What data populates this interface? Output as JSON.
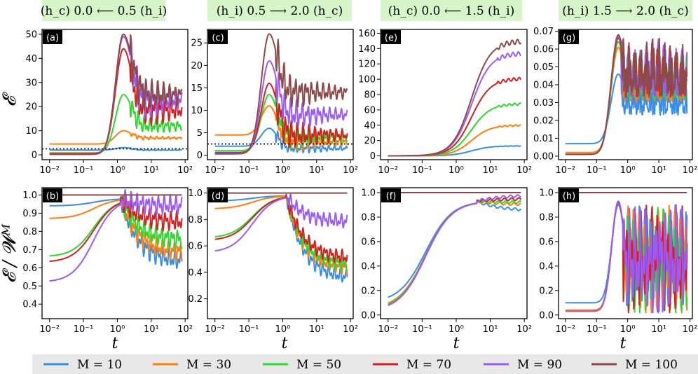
{
  "colors": {
    "M10": "#3a8ee6",
    "M30": "#ff7f0e",
    "M50": "#2ed82e",
    "M70": "#d62020",
    "M90": "#9b5cf5",
    "M100": "#8c4a4a"
  },
  "headers": [
    {
      "text": "(h_c) 0.0  ⟵  0.5 (h_i)"
    },
    {
      "text": "(h_i) 0.5  ⟶  2.0 (h_c)"
    },
    {
      "text": "(h_c) 0.0  ⟵  1.5 (h_i)"
    },
    {
      "text": "(h_i) 1.5  ⟶  2.0 (h_c)"
    }
  ],
  "axis_labels": {
    "top_y": "𝓔",
    "bottom_y": "𝓔 / 𝓦ᴹ",
    "x": "t"
  },
  "chart_data": [
    {
      "panel": "a",
      "type": "line",
      "xscale": "log",
      "xlim": [
        0.006,
        120
      ],
      "ylim": [
        -2,
        52
      ],
      "xticks": [
        "10⁻²",
        "10⁻¹",
        "10⁰",
        "10¹",
        "10²"
      ],
      "yticks": [
        0,
        10,
        20,
        30,
        40,
        50
      ],
      "hline": 2.5,
      "series": [
        {
          "name": "M = 10",
          "color_key": "M10",
          "final": 2,
          "peak": 3,
          "start": 2
        },
        {
          "name": "M = 30",
          "color_key": "M30",
          "final": 7,
          "peak": 10,
          "start": 4.5
        },
        {
          "name": "M = 50",
          "color_key": "M50",
          "final": 12,
          "peak": 25,
          "start": 0.8
        },
        {
          "name": "M = 70",
          "color_key": "M70",
          "final": 18.5,
          "peak": 44,
          "start": 0.5
        },
        {
          "name": "M = 90",
          "color_key": "M90",
          "final": 22.5,
          "peak": 49,
          "start": 0.3
        },
        {
          "name": "M = 100",
          "color_key": "M100",
          "final": 25,
          "peak": 50,
          "start": 0.2
        }
      ]
    },
    {
      "panel": "c",
      "type": "line",
      "xscale": "log",
      "xlim": [
        0.006,
        120
      ],
      "ylim": [
        -1,
        28
      ],
      "xticks": [
        "10⁻²",
        "10⁻¹",
        "10⁰",
        "10¹",
        "10²"
      ],
      "yticks": [
        0,
        5,
        10,
        15,
        20,
        25
      ],
      "hline": 2.5,
      "series": [
        {
          "name": "M = 10",
          "color_key": "M10",
          "final": 1.5,
          "peak": 6,
          "start": 2
        },
        {
          "name": "M = 30",
          "color_key": "M30",
          "final": 3,
          "peak": 11,
          "start": 4.5
        },
        {
          "name": "M = 50",
          "color_key": "M50",
          "final": 4,
          "peak": 13.5,
          "start": 1
        },
        {
          "name": "M = 70",
          "color_key": "M70",
          "final": 4.5,
          "peak": 16,
          "start": 0.6
        },
        {
          "name": "M = 90",
          "color_key": "M90",
          "final": 9,
          "peak": 21,
          "start": 0.4
        },
        {
          "name": "M = 100",
          "color_key": "M100",
          "final": 14,
          "peak": 27,
          "start": 0.3
        }
      ]
    },
    {
      "panel": "e",
      "type": "line",
      "xscale": "log",
      "xlim": [
        0.006,
        120
      ],
      "ylim": [
        -5,
        165
      ],
      "xticks": [
        "10⁻²",
        "10⁻¹",
        "10⁰",
        "10¹",
        "10²"
      ],
      "yticks": [
        0,
        20,
        40,
        60,
        80,
        100,
        120,
        140,
        160
      ],
      "series": [
        {
          "name": "M = 10",
          "color_key": "M10",
          "final": 13
        },
        {
          "name": "M = 30",
          "color_key": "M30",
          "final": 40
        },
        {
          "name": "M = 50",
          "color_key": "M50",
          "final": 68
        },
        {
          "name": "M = 70",
          "color_key": "M70",
          "final": 101
        },
        {
          "name": "M = 90",
          "color_key": "M90",
          "final": 134
        },
        {
          "name": "M = 100",
          "color_key": "M100",
          "final": 150
        }
      ]
    },
    {
      "panel": "g",
      "type": "line",
      "xscale": "log",
      "xlim": [
        0.006,
        120
      ],
      "ylim": [
        -0.002,
        0.071
      ],
      "xticks": [
        "10⁻²",
        "10⁻¹",
        "10⁰",
        "10¹",
        "10²"
      ],
      "yticks": [
        "0.00",
        "0.01",
        "0.02",
        "0.03",
        "0.04",
        "0.05",
        "0.06",
        "0.07"
      ],
      "series": [
        {
          "name": "M = 10",
          "color_key": "M10",
          "peak": 0.046,
          "start": 0.007
        },
        {
          "name": "M = 30",
          "color_key": "M30",
          "peak": 0.061,
          "start": 0.002
        },
        {
          "name": "M = 50",
          "color_key": "M50",
          "peak": 0.064,
          "start": 0.001
        },
        {
          "name": "M = 70",
          "color_key": "M70",
          "peak": 0.066,
          "start": 0.001
        },
        {
          "name": "M = 90",
          "color_key": "M90",
          "peak": 0.067,
          "start": 0.001
        },
        {
          "name": "M = 100",
          "color_key": "M100",
          "peak": 0.068,
          "start": 0.001
        }
      ]
    },
    {
      "panel": "b",
      "type": "line",
      "xscale": "log",
      "xlim": [
        0.006,
        120
      ],
      "ylim": [
        0.32,
        1.04
      ],
      "xticks": [
        "10⁻²",
        "10⁻¹",
        "10⁰",
        "10¹",
        "10²"
      ],
      "yticks": [
        "0.4",
        "0.5",
        "0.6",
        "0.7",
        "0.8",
        "0.9",
        "1.0"
      ],
      "series": [
        {
          "name": "M = 10",
          "color_key": "M10",
          "start": 0.94,
          "final": 0.63
        },
        {
          "name": "M = 30",
          "color_key": "M30",
          "start": 0.87,
          "final": 0.68
        },
        {
          "name": "M = 50",
          "color_key": "M50",
          "start": 0.66,
          "final": 0.75
        },
        {
          "name": "M = 70",
          "color_key": "M70",
          "start": 0.63,
          "final": 0.85
        },
        {
          "name": "M = 90",
          "color_key": "M90",
          "start": 0.52,
          "final": 0.94
        },
        {
          "name": "M = 100",
          "color_key": "M100",
          "start": 1.0,
          "final": 1.0
        }
      ]
    },
    {
      "panel": "d",
      "type": "line",
      "xscale": "log",
      "xlim": [
        0.006,
        120
      ],
      "ylim": [
        0.05,
        1.04
      ],
      "xticks": [
        "10⁻²",
        "10⁻¹",
        "10⁰",
        "10¹",
        "10²"
      ],
      "yticks": [
        "0.2",
        "0.4",
        "0.6",
        "0.8",
        "1.0"
      ],
      "series": [
        {
          "name": "M = 10",
          "color_key": "M10",
          "start": 0.94,
          "final": 0.35
        },
        {
          "name": "M = 30",
          "color_key": "M30",
          "start": 0.88,
          "final": 0.42
        },
        {
          "name": "M = 50",
          "color_key": "M50",
          "start": 0.66,
          "final": 0.45
        },
        {
          "name": "M = 70",
          "color_key": "M70",
          "start": 0.64,
          "final": 0.5
        },
        {
          "name": "M = 90",
          "color_key": "M90",
          "start": 0.55,
          "final": 0.78
        },
        {
          "name": "M = 100",
          "color_key": "M100",
          "start": 1.0,
          "final": 1.0
        }
      ]
    },
    {
      "panel": "f",
      "type": "line",
      "xscale": "log",
      "xlim": [
        0.006,
        120
      ],
      "ylim": [
        -0.03,
        1.04
      ],
      "xticks": [
        "10⁻²",
        "10⁻¹",
        "10⁰",
        "10¹",
        "10²"
      ],
      "yticks": [
        "0.0",
        "0.2",
        "0.4",
        "0.6",
        "0.8",
        "1.0"
      ],
      "series": [
        {
          "name": "M = 10",
          "color_key": "M10",
          "start": 0.1,
          "final": 0.85
        },
        {
          "name": "M = 30",
          "color_key": "M30",
          "start": 0.05,
          "final": 0.9
        },
        {
          "name": "M = 50",
          "color_key": "M50",
          "start": 0.04,
          "final": 0.92
        },
        {
          "name": "M = 70",
          "color_key": "M70",
          "start": 0.03,
          "final": 0.95
        },
        {
          "name": "M = 90",
          "color_key": "M90",
          "start": 0.03,
          "final": 0.98
        },
        {
          "name": "M = 100",
          "color_key": "M100",
          "start": 1.0,
          "final": 1.0
        }
      ]
    },
    {
      "panel": "h",
      "type": "line",
      "xscale": "log",
      "xlim": [
        0.006,
        120
      ],
      "ylim": [
        -0.03,
        1.04
      ],
      "xticks": [
        "10⁻²",
        "10⁻¹",
        "10⁰",
        "10¹",
        "10²"
      ],
      "yticks": [
        "0.0",
        "0.2",
        "0.4",
        "0.6",
        "0.8",
        "1.0"
      ],
      "series": [
        {
          "name": "M = 10",
          "color_key": "M10",
          "start": 0.1,
          "peak": 0.9
        },
        {
          "name": "M = 30",
          "color_key": "M30",
          "start": 0.04,
          "peak": 0.92
        },
        {
          "name": "M = 50",
          "color_key": "M50",
          "start": 0.03,
          "peak": 0.92
        },
        {
          "name": "M = 70",
          "color_key": "M70",
          "start": 0.03,
          "peak": 0.92
        },
        {
          "name": "M = 90",
          "color_key": "M90",
          "start": 0.03,
          "peak": 0.93
        },
        {
          "name": "M = 100",
          "color_key": "M100",
          "start": 1.0,
          "peak": 1.0
        }
      ]
    }
  ],
  "legend": [
    {
      "label": "M = 10",
      "color_key": "M10"
    },
    {
      "label": "M = 30",
      "color_key": "M30"
    },
    {
      "label": "M = 50",
      "color_key": "M50"
    },
    {
      "label": "M = 70",
      "color_key": "M70"
    },
    {
      "label": "M = 90",
      "color_key": "M90"
    },
    {
      "label": "M = 100",
      "color_key": "M100"
    }
  ]
}
